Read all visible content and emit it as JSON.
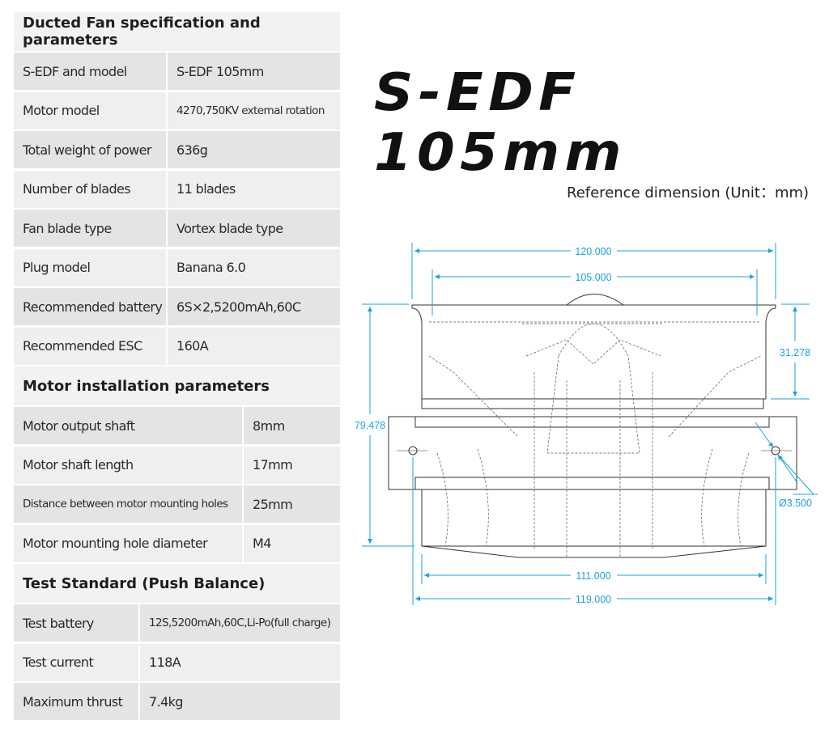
{
  "spec": {
    "title": "Ducted Fan specification and parameters",
    "rows": [
      {
        "label": "S-EDF and model",
        "value": "S-EDF 105mm"
      },
      {
        "label": "Motor model",
        "value": "4270,750KV external rotation"
      },
      {
        "label": "Total weight of power",
        "value": "636g"
      },
      {
        "label": "Number of blades",
        "value": "11 blades"
      },
      {
        "label": "Fan blade type",
        "value": "Vortex blade type"
      },
      {
        "label": "Plug model",
        "value": "Banana 6.0"
      },
      {
        "label": "Recommended battery",
        "value": "6S×2,5200mAh,60C"
      },
      {
        "label": "Recommended ESC",
        "value": "160A"
      }
    ]
  },
  "motor": {
    "title": "Motor installation parameters",
    "rows": [
      {
        "label": "Motor output shaft",
        "value": "8mm"
      },
      {
        "label": "Motor shaft length",
        "value": "17mm"
      },
      {
        "label": "Distance between motor mounting holes",
        "value": "25mm"
      },
      {
        "label": "Motor mounting hole diameter",
        "value": "M4"
      }
    ]
  },
  "test": {
    "title": "Test Standard (Push Balance)",
    "rows": [
      {
        "label": "Test battery",
        "value": "12S,5200mAh,60C,Li-Po(full charge)"
      },
      {
        "label": "Test current",
        "value": "118A"
      },
      {
        "label": "Maximum thrust",
        "value": "7.4kg"
      }
    ]
  },
  "product_title": "S-EDF 105mm",
  "reference": "Reference dimension (Unit：mm)",
  "dimensions": {
    "d120": "120.000",
    "d105": "105.000",
    "d31": "31.278",
    "d79": "79.478",
    "hole": "Ø3.500",
    "d111": "111.000",
    "d119": "119.000"
  },
  "colors": {
    "dimension": "#1aa3e0",
    "row_dark": "#e4e4e4",
    "row_light": "#efefef"
  }
}
